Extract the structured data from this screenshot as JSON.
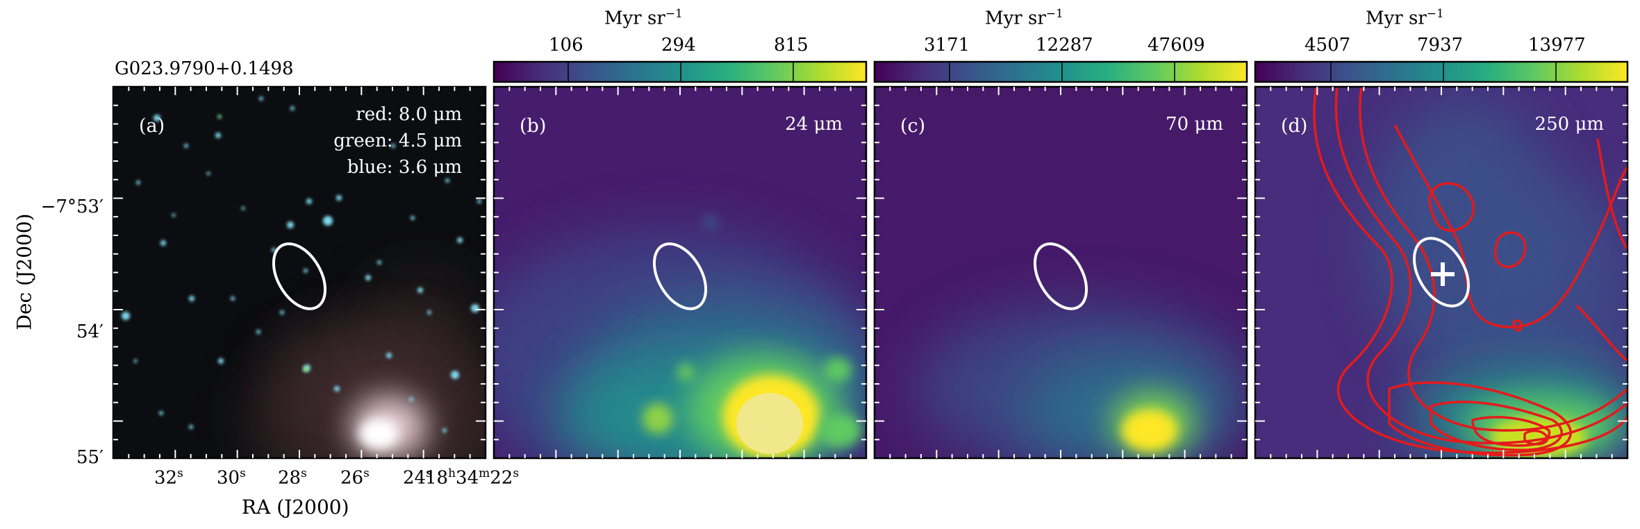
{
  "figure": {
    "source_name": "G023.9790+0.1498",
    "colorbar_unit": "Myr sr",
    "colorbar_unit_exp": "−1",
    "xlabel": "RA (J2000)",
    "ylabel": "Dec (J2000)",
    "dec_ticks": [
      {
        "main": "−7°53′",
        "value": "-7:53"
      },
      {
        "main": "54′",
        "value": "-7:54"
      },
      {
        "main": "55′",
        "value": "-7:55"
      }
    ],
    "ra_ticks": [
      {
        "num": "32",
        "unit": "s"
      },
      {
        "num": "30",
        "unit": "s"
      },
      {
        "num": "28",
        "unit": "s"
      },
      {
        "num": "26",
        "unit": "s"
      },
      {
        "num": "24",
        "unit": "s"
      },
      {
        "num": "18",
        "unit": "h",
        "num2": "34",
        "unit2": "m",
        "num3": "22",
        "unit3": "s"
      }
    ]
  },
  "panels": [
    {
      "label": "(a)",
      "lines": [
        "red: 8.0 μm",
        "green: 4.5 μm",
        "blue: 3.6 μm"
      ]
    },
    {
      "label": "(b)",
      "band": "24 μm",
      "colorbar_ticks": [
        "106",
        "294",
        "815"
      ]
    },
    {
      "label": "(c)",
      "band": "70 μm",
      "colorbar_ticks": [
        "3171",
        "12287",
        "47609"
      ]
    },
    {
      "label": "(d)",
      "band": "250 μm",
      "colorbar_ticks": [
        "4507",
        "7937",
        "13977"
      ]
    }
  ],
  "colors": {
    "viridis": [
      "#440154",
      "#472d7b",
      "#3b528b",
      "#2c728e",
      "#21918c",
      "#28ae80",
      "#5ec962",
      "#addc30",
      "#fde725"
    ],
    "contour": "#e41a1c",
    "ellipse": "#ffffff"
  }
}
